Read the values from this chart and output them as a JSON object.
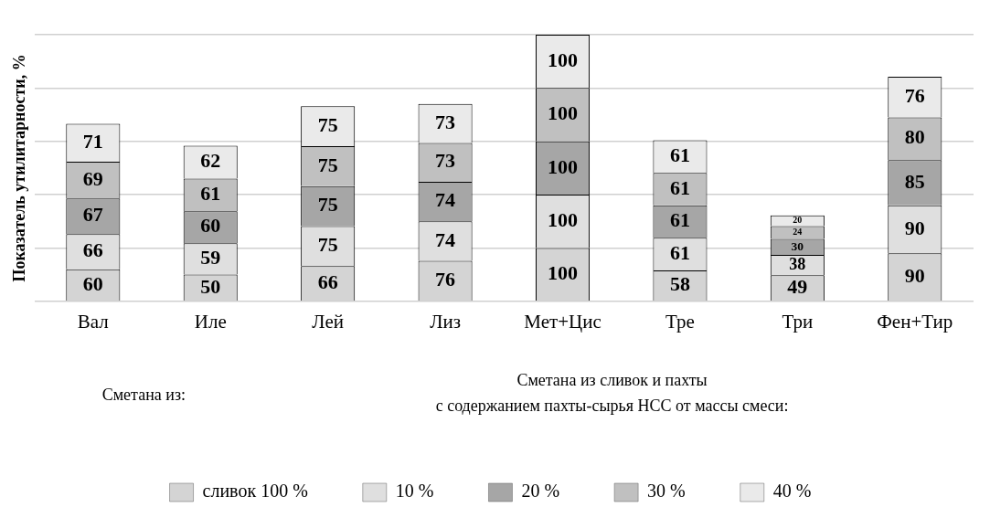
{
  "chart_data": {
    "type": "bar",
    "stacked": true,
    "ylabel": "Показатель утилитарности, %",
    "categories": [
      "Вал",
      "Иле",
      "Лей",
      "Лиз",
      "Мет+Цис",
      "Тре",
      "Три",
      "Фен+Тир"
    ],
    "series": [
      {
        "name": "сливок 100 %",
        "color": "#d4d4d4",
        "values": [
          60,
          50,
          66,
          76,
          100,
          58,
          49,
          90
        ]
      },
      {
        "name": "10 %",
        "color": "#dfdfdf",
        "values": [
          66,
          59,
          75,
          74,
          100,
          61,
          38,
          90
        ]
      },
      {
        "name": "20 %",
        "color": "#a6a6a6",
        "values": [
          67,
          60,
          75,
          74,
          100,
          61,
          30,
          85
        ]
      },
      {
        "name": "30 %",
        "color": "#c0c0c0",
        "values": [
          69,
          61,
          75,
          73,
          100,
          61,
          24,
          80
        ]
      },
      {
        "name": "40 %",
        "color": "#eaeaea",
        "values": [
          71,
          62,
          75,
          73,
          100,
          61,
          20,
          76
        ]
      }
    ],
    "ylim": [
      0,
      500
    ],
    "tick_labels": "x",
    "grid": "y",
    "data_labels": true,
    "legend": "bottom",
    "annotations": [
      "Сметана из:",
      "Сметана из сливок и пахты\nс содержанием пахты-сырья НСС от массы смеси:"
    ]
  }
}
